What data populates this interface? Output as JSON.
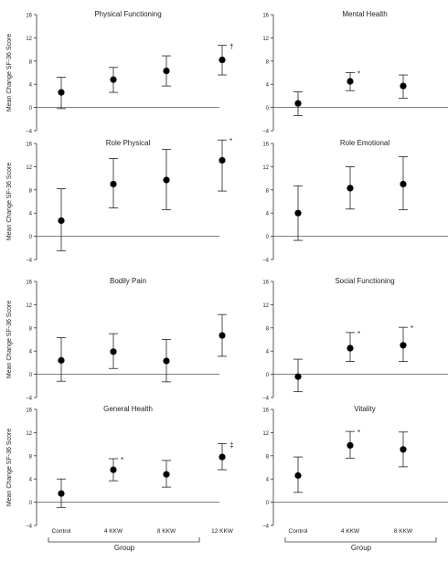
{
  "chart_data": [
    {
      "type": "scatter",
      "title": "Physical Functioning",
      "ylabel": "Mean Change SF-36 Score",
      "ylim": [
        -4,
        16
      ],
      "yticks": [
        -4,
        0,
        4,
        8,
        12,
        16
      ],
      "categories": [
        "Control",
        "4 KKW",
        "8 KKW",
        "12 KKW"
      ],
      "values": [
        2.6,
        4.8,
        6.3,
        8.2
      ],
      "lower": [
        -0.2,
        2.6,
        3.7,
        5.6
      ],
      "upper": [
        5.2,
        6.9,
        8.9,
        10.7
      ],
      "annotations": [
        "",
        "",
        "",
        "†"
      ]
    },
    {
      "type": "scatter",
      "title": "Mental Health",
      "ylabel": "",
      "ylim": [
        -4,
        16
      ],
      "yticks": [
        -4,
        0,
        4,
        8,
        12,
        16
      ],
      "categories": [
        "Control",
        "4 KKW",
        "8 KKW",
        "12 KKW"
      ],
      "values": [
        0.7,
        4.5,
        3.7,
        4.4
      ],
      "lower": [
        -1.4,
        2.9,
        1.6,
        2.2
      ],
      "upper": [
        2.7,
        6.0,
        5.6,
        6.4
      ],
      "annotations": [
        "",
        "*",
        "",
        "*"
      ]
    },
    {
      "type": "scatter",
      "title": "Role Physical",
      "ylabel": "Mean Change SF-36 Score",
      "ylim": [
        -4,
        16
      ],
      "yticks": [
        -4,
        0,
        4,
        8,
        12,
        16
      ],
      "categories": [
        "Control",
        "4 KKW",
        "8 KKW",
        "12 KKW"
      ],
      "values": [
        2.7,
        9.0,
        9.7,
        13.1
      ],
      "lower": [
        -2.5,
        4.9,
        4.6,
        7.8
      ],
      "upper": [
        8.2,
        13.4,
        15.0,
        16.6
      ],
      "annotations": [
        "",
        "",
        "",
        "*"
      ]
    },
    {
      "type": "scatter",
      "title": "Role Emotional",
      "ylabel": "",
      "ylim": [
        -4,
        16
      ],
      "yticks": [
        -4,
        0,
        4,
        8,
        12,
        16
      ],
      "categories": [
        "Control",
        "4 KKW",
        "8 KKW",
        "12 KKW"
      ],
      "values": [
        4.0,
        8.3,
        9.0,
        14.2
      ],
      "lower": [
        -0.7,
        4.7,
        4.6,
        9.6
      ],
      "upper": [
        8.7,
        12.0,
        13.7,
        16.4
      ],
      "annotations": [
        "",
        "",
        "",
        "†"
      ]
    },
    {
      "type": "scatter",
      "title": "Bodily Pain",
      "ylabel": "Mean Change SF-36 Score",
      "ylim": [
        -4,
        16
      ],
      "yticks": [
        -4,
        0,
        4,
        8,
        12,
        16
      ],
      "categories": [
        "Control",
        "4 KKW",
        "8 KKW",
        "12 KKW"
      ],
      "values": [
        2.4,
        3.9,
        2.3,
        6.7
      ],
      "lower": [
        -1.2,
        1.0,
        -1.3,
        3.1
      ],
      "upper": [
        6.3,
        7.0,
        6.0,
        10.3
      ],
      "annotations": [
        "",
        "",
        "",
        ""
      ]
    },
    {
      "type": "scatter",
      "title": "Social Functioning",
      "ylabel": "",
      "ylim": [
        -4,
        16
      ],
      "yticks": [
        -4,
        0,
        4,
        8,
        12,
        16
      ],
      "categories": [
        "Control",
        "4 KKW",
        "8 KKW",
        "12 KKW"
      ],
      "values": [
        -0.4,
        4.5,
        5.0,
        8.9
      ],
      "lower": [
        -3.0,
        2.2,
        2.2,
        5.8
      ],
      "upper": [
        2.6,
        7.2,
        8.1,
        11.8
      ],
      "annotations": [
        "",
        "*",
        "*",
        "‡"
      ]
    },
    {
      "type": "scatter",
      "title": "General Health",
      "ylabel": "Mean Change SF-36 Score",
      "ylim": [
        -4,
        16
      ],
      "yticks": [
        -4,
        0,
        4,
        8,
        12,
        16
      ],
      "categories": [
        "Control",
        "4 KKW",
        "8 KKW",
        "12 KKW"
      ],
      "values": [
        1.5,
        5.6,
        4.8,
        7.8
      ],
      "lower": [
        -0.9,
        3.7,
        2.6,
        5.6
      ],
      "upper": [
        4.0,
        7.5,
        7.2,
        10.1
      ],
      "annotations": [
        "",
        "*",
        "",
        "‡"
      ]
    },
    {
      "type": "scatter",
      "title": "Vitality",
      "ylabel": "",
      "ylim": [
        -4,
        16
      ],
      "yticks": [
        -4,
        0,
        4,
        8,
        12,
        16
      ],
      "categories": [
        "Control",
        "4 KKW",
        "8 KKW",
        "12 KKW"
      ],
      "values": [
        4.6,
        9.8,
        9.1,
        11.9
      ],
      "lower": [
        1.7,
        7.6,
        6.1,
        8.9
      ],
      "upper": [
        7.8,
        12.2,
        12.1,
        14.9
      ],
      "annotations": [
        "",
        "*",
        "",
        "†"
      ]
    }
  ],
  "group_label": "Group"
}
